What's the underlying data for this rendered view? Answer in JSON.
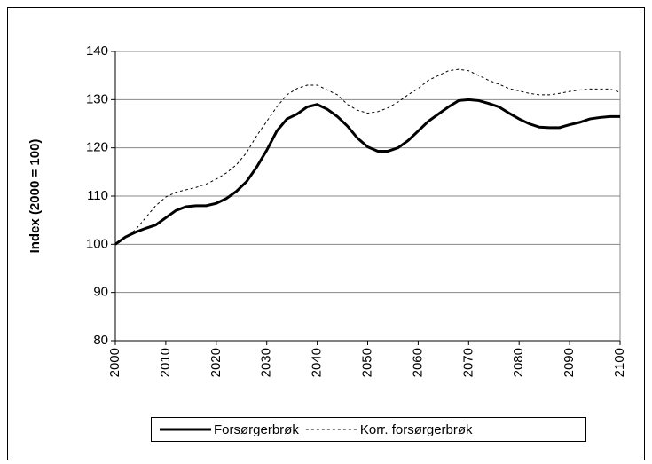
{
  "chart_data": {
    "type": "line",
    "y_label": "Index (2000 = 100)",
    "x": [
      2000,
      2002,
      2004,
      2006,
      2008,
      2010,
      2012,
      2014,
      2016,
      2018,
      2020,
      2022,
      2024,
      2026,
      2028,
      2030,
      2032,
      2034,
      2036,
      2038,
      2040,
      2042,
      2044,
      2046,
      2048,
      2050,
      2052,
      2054,
      2056,
      2058,
      2060,
      2062,
      2064,
      2066,
      2068,
      2070,
      2072,
      2074,
      2076,
      2078,
      2080,
      2082,
      2084,
      2086,
      2088,
      2090,
      2092,
      2094,
      2096,
      2098,
      2100
    ],
    "series": [
      {
        "name": "Forsørgerbrøk",
        "color": "#000000",
        "style": "solid",
        "values": [
          100,
          101.5,
          102.5,
          103.3,
          104,
          105.5,
          107,
          107.8,
          108,
          108,
          108.5,
          109.5,
          111,
          113,
          116,
          119.5,
          123.5,
          126,
          127,
          128.5,
          129,
          128,
          126.5,
          124.5,
          122,
          120.2,
          119.3,
          119.3,
          120,
          121.5,
          123.5,
          125.5,
          127,
          128.5,
          129.8,
          130,
          129.8,
          129.2,
          128.5,
          127.2,
          126,
          125,
          124.3,
          124.2,
          124.2,
          124.8,
          125.3,
          126,
          126.3,
          126.5,
          126.5
        ]
      },
      {
        "name": "Korr. forsørgerbrøk",
        "color": "#000000",
        "style": "dotted",
        "values": [
          100,
          101.5,
          103,
          105.5,
          108,
          109.8,
          110.8,
          111.3,
          111.8,
          112.5,
          113.5,
          114.8,
          116.5,
          119,
          122.5,
          125.5,
          128.5,
          131,
          132.3,
          133,
          133,
          132,
          131,
          129,
          127.8,
          127.2,
          127.5,
          128.3,
          129.5,
          131,
          132.3,
          134,
          135,
          136,
          136.3,
          136,
          135,
          134,
          133.2,
          132.3,
          131.8,
          131.3,
          131,
          131,
          131.3,
          131.7,
          132,
          132.2,
          132.2,
          132.2,
          131.5
        ]
      }
    ],
    "xlim": [
      2000,
      2100
    ],
    "xticks": [
      2000,
      2010,
      2020,
      2030,
      2040,
      2050,
      2060,
      2070,
      2080,
      2090,
      2100
    ],
    "ylim": [
      80,
      140
    ],
    "yticks": [
      80,
      90,
      100,
      110,
      120,
      130,
      140
    ],
    "grid": true,
    "legend": "bottom"
  }
}
